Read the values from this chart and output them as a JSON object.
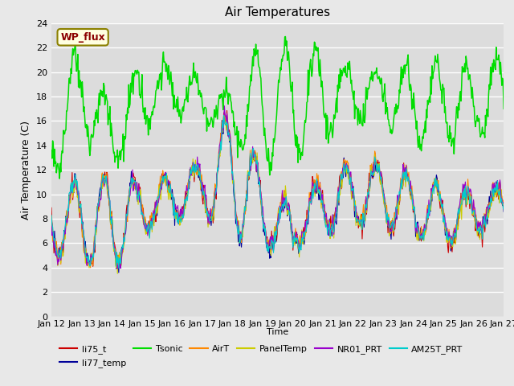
{
  "title": "Air Temperatures",
  "xlabel": "Time",
  "ylabel": "Air Temperature (C)",
  "ylim": [
    0,
    24
  ],
  "yticks": [
    0,
    2,
    4,
    6,
    8,
    10,
    12,
    14,
    16,
    18,
    20,
    22,
    24
  ],
  "xtick_labels": [
    "Jan 12",
    "Jan 13",
    "Jan 14",
    "Jan 15",
    "Jan 16",
    "Jan 17",
    "Jan 18",
    "Jan 19",
    "Jan 20",
    "Jan 21",
    "Jan 22",
    "Jan 23",
    "Jan 24",
    "Jan 25",
    "Jan 26",
    "Jan 27"
  ],
  "bg_color": "#dcdcdc",
  "fig_bg": "#e8e8e8",
  "annotation_text": "WP_flux",
  "series_colors": {
    "li75_t": "#cc0000",
    "li77_temp": "#000099",
    "Tsonic": "#00dd00",
    "AirT": "#ff8800",
    "PanelTemp": "#cccc00",
    "NR01_PRT": "#9900cc",
    "AM25T_PRT": "#00cccc"
  }
}
